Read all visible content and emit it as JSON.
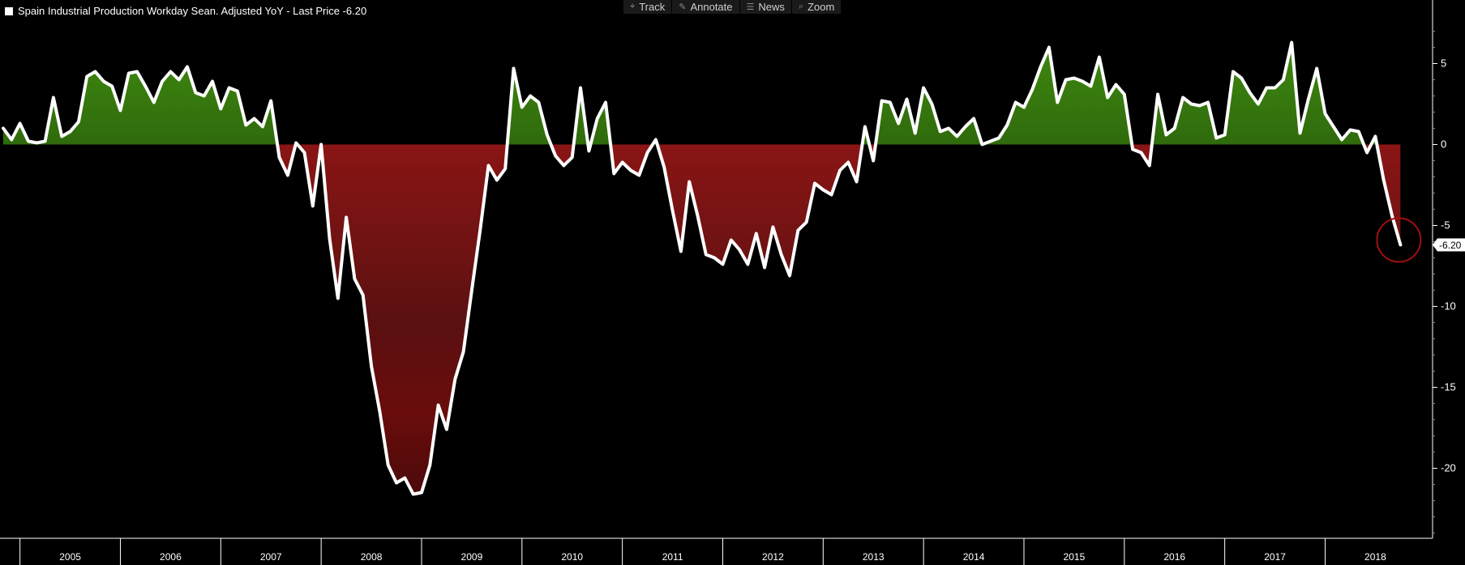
{
  "toolbar": {
    "items": [
      {
        "label": "Track",
        "icon": "crosshair-icon",
        "glyph": "⌖"
      },
      {
        "label": "Annotate",
        "icon": "pencil-icon",
        "glyph": "✎"
      },
      {
        "label": "News",
        "icon": "news-icon",
        "glyph": "☰"
      },
      {
        "label": "Zoom",
        "icon": "magnifier-icon",
        "glyph": "⌕"
      }
    ]
  },
  "legend": {
    "text": "Spain Industrial Production Workday Sean. Adjusted YoY - Last Price -6.20",
    "swatch_color": "#ffffff"
  },
  "chart_data": {
    "type": "area",
    "title": "Spain Industrial Production Workday Sean. Adjusted YoY - Last Price -6.20",
    "xlabel": "",
    "ylabel": "",
    "ylim": [
      -24,
      8
    ],
    "y_ticks": [
      5,
      0,
      -5,
      -10,
      -15,
      -20
    ],
    "y_tick_labels": [
      "5",
      "0",
      "-5",
      "-10",
      "-15",
      "-20"
    ],
    "x_tick_labels": [
      "2005",
      "2006",
      "2007",
      "2008",
      "2009",
      "2010",
      "2011",
      "2012",
      "2013",
      "2014",
      "2015",
      "2016",
      "2017",
      "2018"
    ],
    "xlim": [
      "2004-11",
      "2018-12"
    ],
    "grid": false,
    "legend_position": "top-left",
    "last_value_label": "-6.20",
    "colors": {
      "line": "#ffffff",
      "positive_fill": "#3a7a0e",
      "negative_fill": "#7a1212",
      "highlight_circle": "#a01010",
      "axis": "#ffffff"
    },
    "series": [
      {
        "name": "Spain Industrial Production Workday Sean. Adjusted YoY",
        "points": [
          [
            "2004-11",
            1.0
          ],
          [
            "2004-12",
            0.3
          ],
          [
            "2005-01",
            1.3
          ],
          [
            "2005-02",
            0.2
          ],
          [
            "2005-03",
            0.1
          ],
          [
            "2005-04",
            0.2
          ],
          [
            "2005-05",
            2.9
          ],
          [
            "2005-06",
            0.5
          ],
          [
            "2005-07",
            0.8
          ],
          [
            "2005-08",
            1.4
          ],
          [
            "2005-09",
            4.2
          ],
          [
            "2005-10",
            4.5
          ],
          [
            "2005-11",
            3.9
          ],
          [
            "2005-12",
            3.6
          ],
          [
            "2006-01",
            2.1
          ],
          [
            "2006-02",
            4.4
          ],
          [
            "2006-03",
            4.5
          ],
          [
            "2006-04",
            3.6
          ],
          [
            "2006-05",
            2.6
          ],
          [
            "2006-06",
            3.9
          ],
          [
            "2006-07",
            4.5
          ],
          [
            "2006-08",
            4.0
          ],
          [
            "2006-09",
            4.8
          ],
          [
            "2006-10",
            3.2
          ],
          [
            "2006-11",
            3.0
          ],
          [
            "2006-12",
            3.9
          ],
          [
            "2007-01",
            2.2
          ],
          [
            "2007-02",
            3.5
          ],
          [
            "2007-03",
            3.3
          ],
          [
            "2007-04",
            1.2
          ],
          [
            "2007-05",
            1.6
          ],
          [
            "2007-06",
            1.1
          ],
          [
            "2007-07",
            2.7
          ],
          [
            "2007-08",
            -0.8
          ],
          [
            "2007-09",
            -1.9
          ],
          [
            "2007-10",
            0.1
          ],
          [
            "2007-11",
            -0.5
          ],
          [
            "2007-12",
            -3.8
          ],
          [
            "2008-01",
            0.0
          ],
          [
            "2008-02",
            -5.8
          ],
          [
            "2008-03",
            -9.5
          ],
          [
            "2008-04",
            -4.5
          ],
          [
            "2008-05",
            -8.3
          ],
          [
            "2008-06",
            -9.3
          ],
          [
            "2008-07",
            -13.7
          ],
          [
            "2008-08",
            -16.5
          ],
          [
            "2008-09",
            -19.8
          ],
          [
            "2008-10",
            -20.9
          ],
          [
            "2008-11",
            -20.6
          ],
          [
            "2008-12",
            -21.6
          ],
          [
            "2009-01",
            -21.5
          ],
          [
            "2009-02",
            -19.8
          ],
          [
            "2009-03",
            -16.1
          ],
          [
            "2009-04",
            -17.6
          ],
          [
            "2009-05",
            -14.5
          ],
          [
            "2009-06",
            -12.8
          ],
          [
            "2009-07",
            -9.0
          ],
          [
            "2009-08",
            -5.3
          ],
          [
            "2009-09",
            -1.3
          ],
          [
            "2009-10",
            -2.2
          ],
          [
            "2009-11",
            -1.5
          ],
          [
            "2009-12",
            4.7
          ],
          [
            "2010-01",
            2.3
          ],
          [
            "2010-02",
            3.0
          ],
          [
            "2010-03",
            2.6
          ],
          [
            "2010-04",
            0.6
          ],
          [
            "2010-05",
            -0.7
          ],
          [
            "2010-06",
            -1.3
          ],
          [
            "2010-07",
            -0.8
          ],
          [
            "2010-08",
            3.5
          ],
          [
            "2010-09",
            -0.4
          ],
          [
            "2010-10",
            1.6
          ],
          [
            "2010-11",
            2.6
          ],
          [
            "2010-12",
            -1.8
          ],
          [
            "2011-01",
            -1.1
          ],
          [
            "2011-02",
            -1.6
          ],
          [
            "2011-03",
            -1.9
          ],
          [
            "2011-04",
            -0.5
          ],
          [
            "2011-05",
            0.3
          ],
          [
            "2011-06",
            -1.4
          ],
          [
            "2011-07",
            -4.1
          ],
          [
            "2011-08",
            -6.6
          ],
          [
            "2011-09",
            -2.3
          ],
          [
            "2011-10",
            -4.4
          ],
          [
            "2011-11",
            -6.8
          ],
          [
            "2011-12",
            -7.0
          ],
          [
            "2012-01",
            -7.4
          ],
          [
            "2012-02",
            -5.9
          ],
          [
            "2012-03",
            -6.5
          ],
          [
            "2012-04",
            -7.4
          ],
          [
            "2012-05",
            -5.5
          ],
          [
            "2012-06",
            -7.6
          ],
          [
            "2012-07",
            -5.1
          ],
          [
            "2012-08",
            -6.8
          ],
          [
            "2012-09",
            -8.1
          ],
          [
            "2012-10",
            -5.3
          ],
          [
            "2012-11",
            -4.8
          ],
          [
            "2012-12",
            -2.4
          ],
          [
            "2013-01",
            -2.8
          ],
          [
            "2013-02",
            -3.1
          ],
          [
            "2013-03",
            -1.6
          ],
          [
            "2013-04",
            -1.1
          ],
          [
            "2013-05",
            -2.3
          ],
          [
            "2013-06",
            1.1
          ],
          [
            "2013-07",
            -1.0
          ],
          [
            "2013-08",
            2.7
          ],
          [
            "2013-09",
            2.6
          ],
          [
            "2013-10",
            1.3
          ],
          [
            "2013-11",
            2.8
          ],
          [
            "2013-12",
            0.7
          ],
          [
            "2014-01",
            3.5
          ],
          [
            "2014-02",
            2.5
          ],
          [
            "2014-03",
            0.8
          ],
          [
            "2014-04",
            1.0
          ],
          [
            "2014-05",
            0.5
          ],
          [
            "2014-06",
            1.1
          ],
          [
            "2014-07",
            1.6
          ],
          [
            "2014-08",
            0.0
          ],
          [
            "2014-09",
            0.2
          ],
          [
            "2014-10",
            0.4
          ],
          [
            "2014-11",
            1.2
          ],
          [
            "2014-12",
            2.6
          ],
          [
            "2015-01",
            2.3
          ],
          [
            "2015-02",
            3.4
          ],
          [
            "2015-03",
            4.8
          ],
          [
            "2015-04",
            6.0
          ],
          [
            "2015-05",
            2.6
          ],
          [
            "2015-06",
            4.0
          ],
          [
            "2015-07",
            4.1
          ],
          [
            "2015-08",
            3.9
          ],
          [
            "2015-09",
            3.6
          ],
          [
            "2015-10",
            5.4
          ],
          [
            "2015-11",
            2.9
          ],
          [
            "2015-12",
            3.7
          ],
          [
            "2016-01",
            3.1
          ],
          [
            "2016-02",
            -0.3
          ],
          [
            "2016-03",
            -0.5
          ],
          [
            "2016-04",
            -1.3
          ],
          [
            "2016-05",
            3.1
          ],
          [
            "2016-06",
            0.6
          ],
          [
            "2016-07",
            1.0
          ],
          [
            "2016-08",
            2.9
          ],
          [
            "2016-09",
            2.5
          ],
          [
            "2016-10",
            2.4
          ],
          [
            "2016-11",
            2.6
          ],
          [
            "2016-12",
            0.4
          ],
          [
            "2017-01",
            0.6
          ],
          [
            "2017-02",
            4.5
          ],
          [
            "2017-03",
            4.1
          ],
          [
            "2017-04",
            3.2
          ],
          [
            "2017-05",
            2.5
          ],
          [
            "2017-06",
            3.5
          ],
          [
            "2017-07",
            3.5
          ],
          [
            "2017-08",
            4.0
          ],
          [
            "2017-09",
            6.3
          ],
          [
            "2017-10",
            0.7
          ],
          [
            "2017-11",
            2.8
          ],
          [
            "2017-12",
            4.7
          ],
          [
            "2018-01",
            1.9
          ],
          [
            "2018-02",
            1.1
          ],
          [
            "2018-03",
            0.3
          ],
          [
            "2018-04",
            0.9
          ],
          [
            "2018-05",
            0.8
          ],
          [
            "2018-06",
            -0.5
          ],
          [
            "2018-07",
            0.5
          ],
          [
            "2018-08",
            -2.2
          ],
          [
            "2018-09",
            -4.4
          ],
          [
            "2018-10",
            -6.2
          ]
        ]
      }
    ]
  }
}
